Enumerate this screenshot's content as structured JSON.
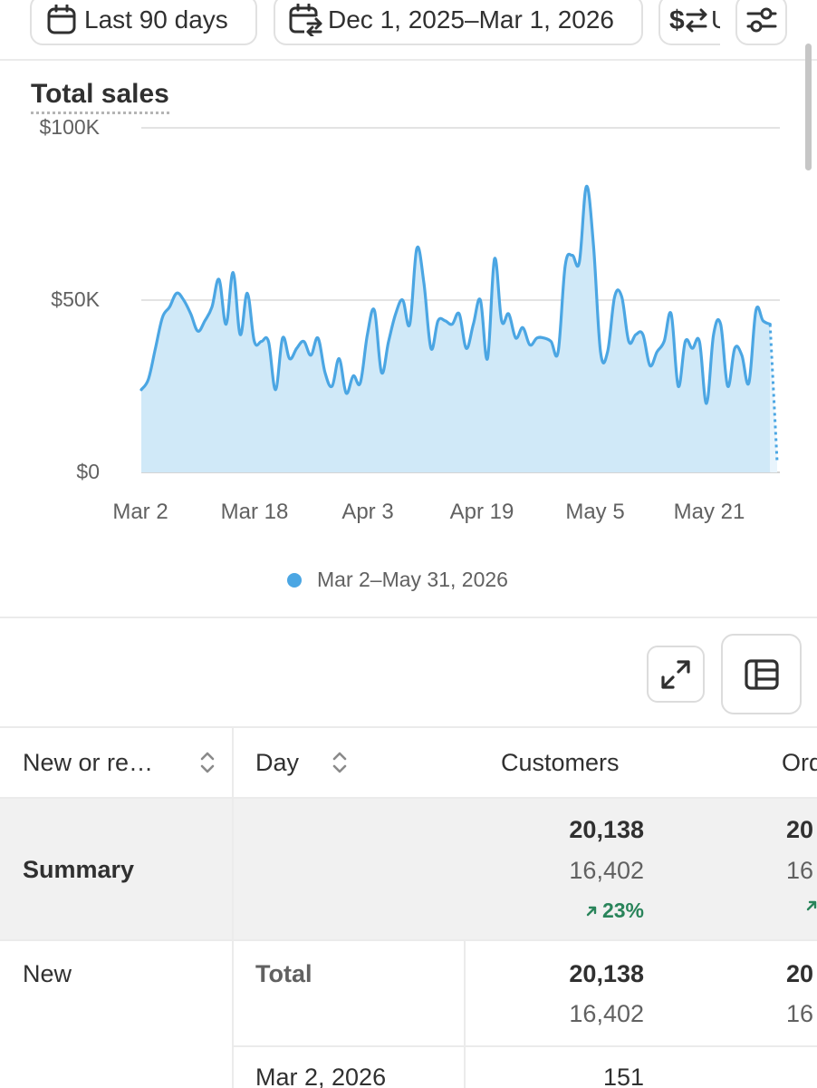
{
  "filters": {
    "date_range": "Last 90 days",
    "compare_range": "Dec 1, 2025–Mar 1, 2026",
    "currency_label": "U",
    "icons": [
      "calendar-icon",
      "calendar-compare-icon",
      "currency-convert-icon",
      "filter-sliders-icon"
    ]
  },
  "chart": {
    "title": "Total sales",
    "legend_label": "Mar 2–May 31, 2026",
    "accent_color": "#4ba6e3",
    "fill_color": "#d0e9f8"
  },
  "chart_data": {
    "type": "area",
    "title": "Total sales",
    "y_ticks": [
      "$100K",
      "$50K",
      "$0"
    ],
    "x_ticks": [
      "Mar 2",
      "Mar 18",
      "Apr 3",
      "Apr 19",
      "May 5",
      "May 21"
    ],
    "ylim": [
      0,
      100000
    ],
    "x_start": "2026-03-02",
    "x_end": "2026-05-31",
    "grid": true,
    "legend_position": "bottom-center",
    "series": [
      {
        "name": "Mar 2–May 31, 2026",
        "values": [
          24000,
          27000,
          36000,
          45000,
          48000,
          52000,
          50000,
          46000,
          41000,
          44000,
          48000,
          56000,
          43000,
          58000,
          40000,
          52000,
          38000,
          38000,
          38000,
          24000,
          39000,
          33000,
          36000,
          38000,
          34000,
          39000,
          29000,
          25000,
          33000,
          23000,
          28000,
          26000,
          40000,
          47000,
          29000,
          38000,
          46000,
          50000,
          43000,
          65000,
          55000,
          36000,
          44000,
          44000,
          43000,
          46000,
          36000,
          43000,
          50000,
          33000,
          62000,
          44000,
          46000,
          39000,
          42000,
          37000,
          39000,
          39000,
          38000,
          35000,
          60000,
          63000,
          61000,
          83000,
          66000,
          35000,
          35000,
          51000,
          51000,
          38000,
          40000,
          40000,
          31000,
          35000,
          38000,
          46000,
          25000,
          38000,
          36000,
          38000,
          20000,
          40000,
          43000,
          25000,
          36000,
          34000,
          26000,
          47000,
          44000,
          43000,
          3000
        ]
      }
    ]
  },
  "table": {
    "headers": {
      "type": "New or re…",
      "day": "Day",
      "customers": "Customers",
      "orders": "Orders"
    },
    "summary": {
      "label": "Summary",
      "customers_current": "20,138",
      "customers_previous": "16,402",
      "customers_change": "23%",
      "orders_current": "20",
      "orders_previous": "16"
    },
    "group": {
      "label": "New",
      "day_label": "Total",
      "customers_current": "20,138",
      "customers_previous": "16,402",
      "orders_current": "20",
      "orders_previous": "16"
    },
    "rows": [
      {
        "day": "Mar 2, 2026",
        "customers": "151"
      }
    ]
  }
}
